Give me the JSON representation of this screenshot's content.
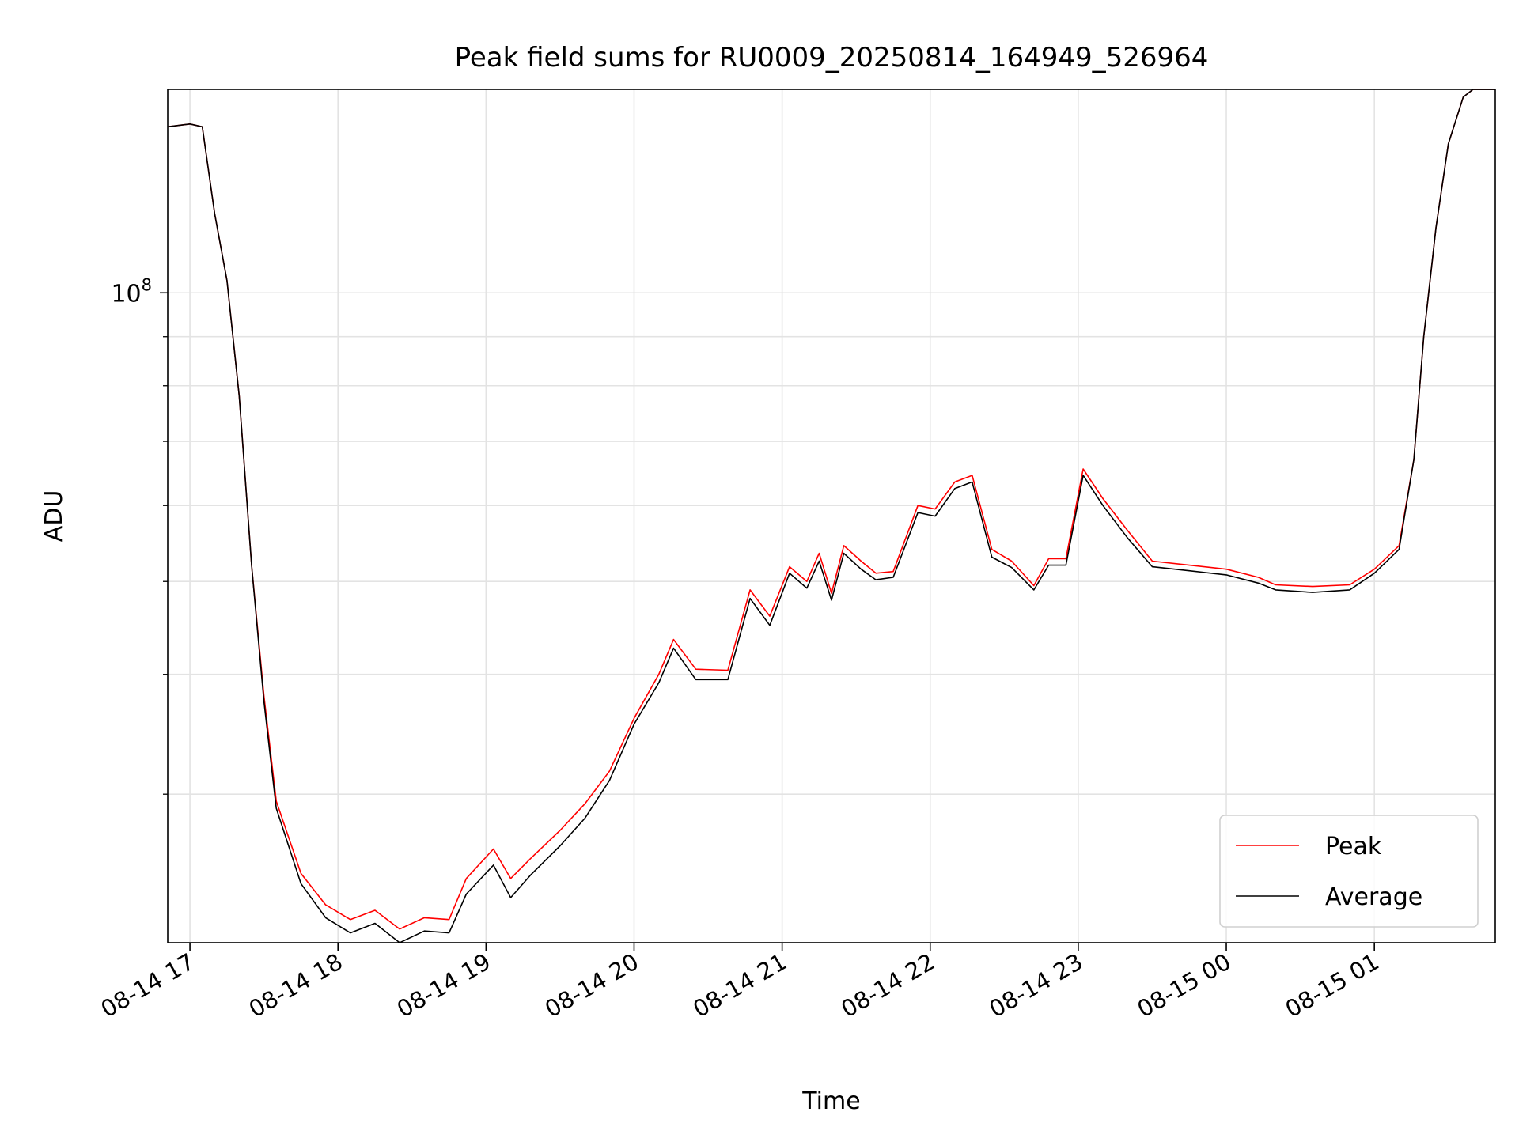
{
  "chart_data": {
    "type": "line",
    "title": "Peak field sums for RU0009_20250814_164949_526964",
    "xlabel": "Time",
    "ylabel": "ADU",
    "y_scale": "log",
    "ylim": [
      21000000,
      163000000
    ],
    "xlim": [
      "2025-08-14 16:51",
      "2025-08-15 01:49"
    ],
    "grid": true,
    "legend": {
      "placement": "lower-right"
    },
    "x_ticks": [
      {
        "t": "2025-08-14 17:00",
        "label": "08-14 17"
      },
      {
        "t": "2025-08-14 18:00",
        "label": "08-14 18"
      },
      {
        "t": "2025-08-14 19:00",
        "label": "08-14 19"
      },
      {
        "t": "2025-08-14 20:00",
        "label": "08-14 20"
      },
      {
        "t": "2025-08-14 21:00",
        "label": "08-14 21"
      },
      {
        "t": "2025-08-14 22:00",
        "label": "08-14 22"
      },
      {
        "t": "2025-08-14 23:00",
        "label": "08-14 23"
      },
      {
        "t": "2025-08-15 00:00",
        "label": "08-15 00"
      },
      {
        "t": "2025-08-15 01:00",
        "label": "08-15 01"
      }
    ],
    "y_major_ticks": [
      {
        "value": 100000000,
        "base": "10",
        "exp": "8"
      }
    ],
    "y_minor_ticks": [
      30000000,
      40000000,
      50000000,
      60000000,
      70000000,
      80000000,
      90000000,
      200000000
    ],
    "series": [
      {
        "name": "Peak",
        "color": "#ff0000",
        "points": [
          [
            "2025-08-14 16:51",
            149000000
          ],
          [
            "2025-08-14 17:00",
            150000000
          ],
          [
            "2025-08-14 17:05",
            149000000
          ],
          [
            "2025-08-14 17:10",
            121000000
          ],
          [
            "2025-08-14 17:15",
            103000000
          ],
          [
            "2025-08-14 17:20",
            78000000
          ],
          [
            "2025-08-14 17:25",
            52000000
          ],
          [
            "2025-08-14 17:30",
            38000000
          ],
          [
            "2025-08-14 17:35",
            29500000
          ],
          [
            "2025-08-14 17:45",
            24800000
          ],
          [
            "2025-08-14 17:55",
            23000000
          ],
          [
            "2025-08-14 18:05",
            22200000
          ],
          [
            "2025-08-14 18:15",
            22700000
          ],
          [
            "2025-08-14 18:25",
            21700000
          ],
          [
            "2025-08-14 18:35",
            22300000
          ],
          [
            "2025-08-14 18:45",
            22200000
          ],
          [
            "2025-08-14 18:52",
            24500000
          ],
          [
            "2025-08-14 19:03",
            26300000
          ],
          [
            "2025-08-14 19:10",
            24500000
          ],
          [
            "2025-08-14 19:18",
            25700000
          ],
          [
            "2025-08-14 19:30",
            27500000
          ],
          [
            "2025-08-14 19:40",
            29300000
          ],
          [
            "2025-08-14 19:50",
            31700000
          ],
          [
            "2025-08-14 20:00",
            36000000
          ],
          [
            "2025-08-14 20:10",
            40000000
          ],
          [
            "2025-08-14 20:16",
            43500000
          ],
          [
            "2025-08-14 20:25",
            40500000
          ],
          [
            "2025-08-14 20:38",
            40400000
          ],
          [
            "2025-08-14 20:47",
            49000000
          ],
          [
            "2025-08-14 20:55",
            46000000
          ],
          [
            "2025-08-14 21:03",
            51800000
          ],
          [
            "2025-08-14 21:10",
            50000000
          ],
          [
            "2025-08-14 21:15",
            53500000
          ],
          [
            "2025-08-14 21:20",
            48600000
          ],
          [
            "2025-08-14 21:25",
            54500000
          ],
          [
            "2025-08-14 21:32",
            52500000
          ],
          [
            "2025-08-14 21:38",
            51000000
          ],
          [
            "2025-08-14 21:45",
            51200000
          ],
          [
            "2025-08-14 21:55",
            60000000
          ],
          [
            "2025-08-14 22:02",
            59500000
          ],
          [
            "2025-08-14 22:10",
            63500000
          ],
          [
            "2025-08-14 22:17",
            64500000
          ],
          [
            "2025-08-14 22:25",
            54000000
          ],
          [
            "2025-08-14 22:33",
            52500000
          ],
          [
            "2025-08-14 22:42",
            49500000
          ],
          [
            "2025-08-14 22:48",
            52800000
          ],
          [
            "2025-08-14 22:55",
            52800000
          ],
          [
            "2025-08-14 23:02",
            65500000
          ],
          [
            "2025-08-14 23:10",
            61000000
          ],
          [
            "2025-08-14 23:20",
            56500000
          ],
          [
            "2025-08-14 23:30",
            52500000
          ],
          [
            "2025-08-14 23:45",
            52000000
          ],
          [
            "2025-08-15 00:00",
            51500000
          ],
          [
            "2025-08-15 00:13",
            50500000
          ],
          [
            "2025-08-15 00:20",
            49600000
          ],
          [
            "2025-08-15 00:35",
            49400000
          ],
          [
            "2025-08-15 00:50",
            49600000
          ],
          [
            "2025-08-15 01:00",
            51500000
          ],
          [
            "2025-08-15 01:10",
            54500000
          ],
          [
            "2025-08-15 01:16",
            67000000
          ],
          [
            "2025-08-15 01:20",
            90000000
          ],
          [
            "2025-08-15 01:25",
            117000000
          ],
          [
            "2025-08-15 01:30",
            143000000
          ],
          [
            "2025-08-15 01:36",
            160000000
          ],
          [
            "2025-08-15 01:40",
            163000000
          ],
          [
            "2025-08-15 01:49",
            163000000
          ]
        ]
      },
      {
        "name": "Average",
        "color": "#000000",
        "points": [
          [
            "2025-08-14 16:51",
            149000000
          ],
          [
            "2025-08-14 17:00",
            150000000
          ],
          [
            "2025-08-14 17:05",
            149000000
          ],
          [
            "2025-08-14 17:10",
            121000000
          ],
          [
            "2025-08-14 17:15",
            103000000
          ],
          [
            "2025-08-14 17:20",
            78000000
          ],
          [
            "2025-08-14 17:25",
            52000000
          ],
          [
            "2025-08-14 17:30",
            37500000
          ],
          [
            "2025-08-14 17:35",
            29000000
          ],
          [
            "2025-08-14 17:45",
            24200000
          ],
          [
            "2025-08-14 17:55",
            22300000
          ],
          [
            "2025-08-14 18:05",
            21500000
          ],
          [
            "2025-08-14 18:15",
            22000000
          ],
          [
            "2025-08-14 18:25",
            21000000
          ],
          [
            "2025-08-14 18:35",
            21600000
          ],
          [
            "2025-08-14 18:45",
            21500000
          ],
          [
            "2025-08-14 18:52",
            23600000
          ],
          [
            "2025-08-14 19:03",
            25300000
          ],
          [
            "2025-08-14 19:10",
            23400000
          ],
          [
            "2025-08-14 19:18",
            24700000
          ],
          [
            "2025-08-14 19:30",
            26500000
          ],
          [
            "2025-08-14 19:40",
            28300000
          ],
          [
            "2025-08-14 19:50",
            31000000
          ],
          [
            "2025-08-14 20:00",
            35500000
          ],
          [
            "2025-08-14 20:10",
            39200000
          ],
          [
            "2025-08-14 20:16",
            42600000
          ],
          [
            "2025-08-14 20:25",
            39500000
          ],
          [
            "2025-08-14 20:38",
            39500000
          ],
          [
            "2025-08-14 20:47",
            48000000
          ],
          [
            "2025-08-14 20:55",
            45000000
          ],
          [
            "2025-08-14 21:03",
            51000000
          ],
          [
            "2025-08-14 21:10",
            49200000
          ],
          [
            "2025-08-14 21:15",
            52500000
          ],
          [
            "2025-08-14 21:20",
            47800000
          ],
          [
            "2025-08-14 21:25",
            53500000
          ],
          [
            "2025-08-14 21:32",
            51500000
          ],
          [
            "2025-08-14 21:38",
            50200000
          ],
          [
            "2025-08-14 21:45",
            50500000
          ],
          [
            "2025-08-14 21:55",
            59000000
          ],
          [
            "2025-08-14 22:02",
            58500000
          ],
          [
            "2025-08-14 22:10",
            62500000
          ],
          [
            "2025-08-14 22:17",
            63500000
          ],
          [
            "2025-08-14 22:25",
            53000000
          ],
          [
            "2025-08-14 22:33",
            51700000
          ],
          [
            "2025-08-14 22:42",
            49000000
          ],
          [
            "2025-08-14 22:48",
            52000000
          ],
          [
            "2025-08-14 22:55",
            52000000
          ],
          [
            "2025-08-14 23:02",
            64500000
          ],
          [
            "2025-08-14 23:10",
            60000000
          ],
          [
            "2025-08-14 23:20",
            55500000
          ],
          [
            "2025-08-14 23:30",
            51800000
          ],
          [
            "2025-08-14 23:45",
            51300000
          ],
          [
            "2025-08-15 00:00",
            50800000
          ],
          [
            "2025-08-15 00:13",
            49800000
          ],
          [
            "2025-08-15 00:20",
            49000000
          ],
          [
            "2025-08-15 00:35",
            48700000
          ],
          [
            "2025-08-15 00:50",
            49000000
          ],
          [
            "2025-08-15 01:00",
            51000000
          ],
          [
            "2025-08-15 01:10",
            54000000
          ],
          [
            "2025-08-15 01:16",
            67000000
          ],
          [
            "2025-08-15 01:20",
            90000000
          ],
          [
            "2025-08-15 01:25",
            117000000
          ],
          [
            "2025-08-15 01:30",
            143000000
          ],
          [
            "2025-08-15 01:36",
            160000000
          ],
          [
            "2025-08-15 01:40",
            163000000
          ],
          [
            "2025-08-15 01:49",
            163000000
          ]
        ]
      }
    ]
  }
}
